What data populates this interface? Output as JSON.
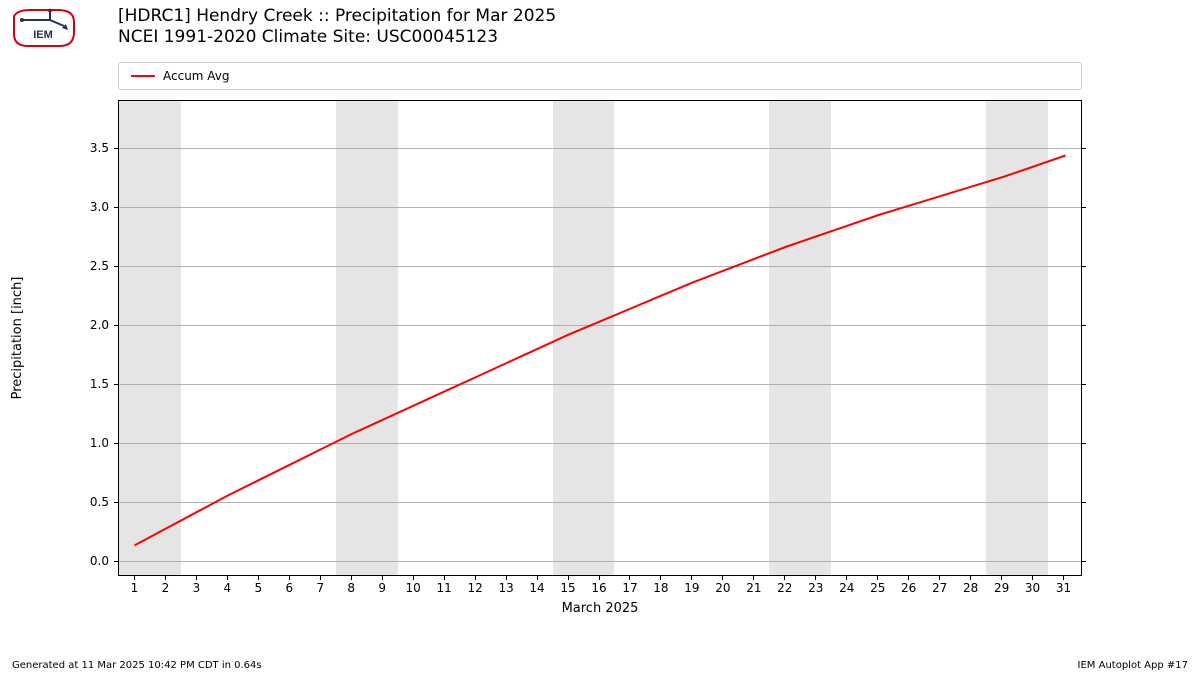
{
  "title_line1": "[HDRC1] Hendry Creek :: Precipitation for Mar 2025",
  "title_line2": "NCEI 1991-2020 Climate Site: USC00045123",
  "xlabel": "March 2025",
  "ylabel": "Precipitation [inch]",
  "footer_left": "Generated at 11 Mar 2025 10:42 PM CDT in 0.64s",
  "footer_right": "IEM Autoplot App #17",
  "legend": {
    "items": [
      {
        "label": "Accum Avg",
        "color": "#ff0000"
      }
    ]
  },
  "chart": {
    "type": "line",
    "background_color": "#ffffff",
    "grid_color": "#b0b0b0",
    "weekend_band_color": "#e5e5e5",
    "line_color": "#ff0000",
    "line_width": 2,
    "xlim": [
      0.5,
      31.5
    ],
    "ylim": [
      -0.1,
      3.9
    ],
    "xticks": [
      1,
      2,
      3,
      4,
      5,
      6,
      7,
      8,
      9,
      10,
      11,
      12,
      13,
      14,
      15,
      16,
      17,
      18,
      19,
      20,
      21,
      22,
      23,
      24,
      25,
      26,
      27,
      28,
      29,
      30,
      31
    ],
    "yticks": [
      0.0,
      0.5,
      1.0,
      1.5,
      2.0,
      2.5,
      3.0,
      3.5
    ],
    "ytick_labels": [
      "0.0",
      "0.5",
      "1.0",
      "1.5",
      "2.0",
      "2.5",
      "3.0",
      "3.5"
    ],
    "weekend_bands": [
      [
        0.5,
        2.5
      ],
      [
        7.5,
        9.5
      ],
      [
        14.5,
        16.5
      ],
      [
        21.5,
        23.5
      ],
      [
        28.5,
        30.5
      ]
    ],
    "series": {
      "x": [
        1,
        2,
        3,
        4,
        5,
        6,
        7,
        8,
        9,
        10,
        11,
        12,
        13,
        14,
        15,
        16,
        17,
        18,
        19,
        20,
        21,
        22,
        23,
        24,
        25,
        26,
        27,
        28,
        29,
        30,
        31
      ],
      "y": [
        0.15,
        0.29,
        0.43,
        0.57,
        0.7,
        0.83,
        0.96,
        1.09,
        1.21,
        1.33,
        1.45,
        1.57,
        1.69,
        1.81,
        1.93,
        2.04,
        2.15,
        2.26,
        2.37,
        2.47,
        2.57,
        2.67,
        2.76,
        2.85,
        2.94,
        3.02,
        3.1,
        3.18,
        3.26,
        3.35,
        3.44
      ]
    }
  },
  "logo": {
    "outline_color": "#d8000f",
    "accent_color": "#28305a"
  }
}
